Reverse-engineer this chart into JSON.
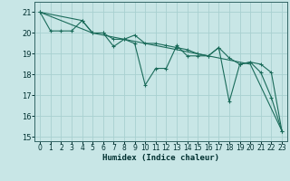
{
  "xlabel": "Humidex (Indice chaleur)",
  "background_color": "#c8e6e6",
  "grid_color": "#a8d0d0",
  "line_color": "#1a6b5a",
  "xlim": [
    -0.5,
    23.5
  ],
  "ylim": [
    14.8,
    21.5
  ],
  "xticks": [
    0,
    1,
    2,
    3,
    4,
    5,
    6,
    7,
    8,
    9,
    10,
    11,
    12,
    13,
    14,
    15,
    16,
    17,
    18,
    19,
    20,
    21,
    22,
    23
  ],
  "yticks": [
    15,
    16,
    17,
    18,
    19,
    20,
    21
  ],
  "series1": [
    [
      0,
      21.0
    ],
    [
      1,
      20.1
    ],
    [
      2,
      20.1
    ],
    [
      3,
      20.1
    ],
    [
      4,
      20.6
    ],
    [
      5,
      20.0
    ],
    [
      6,
      20.0
    ],
    [
      7,
      19.35
    ],
    [
      8,
      19.7
    ],
    [
      9,
      19.5
    ],
    [
      10,
      17.5
    ],
    [
      11,
      18.3
    ],
    [
      12,
      18.3
    ],
    [
      13,
      19.4
    ],
    [
      14,
      18.9
    ],
    [
      15,
      18.9
    ],
    [
      16,
      18.9
    ],
    [
      17,
      19.3
    ],
    [
      18,
      16.7
    ],
    [
      19,
      18.5
    ],
    [
      20,
      18.6
    ],
    [
      21,
      18.1
    ],
    [
      22,
      16.9
    ],
    [
      23,
      15.3
    ]
  ],
  "series2": [
    [
      0,
      21.0
    ],
    [
      4,
      20.6
    ],
    [
      5,
      20.0
    ],
    [
      6,
      20.0
    ],
    [
      7,
      19.7
    ],
    [
      8,
      19.7
    ],
    [
      9,
      19.9
    ],
    [
      10,
      19.5
    ],
    [
      11,
      19.5
    ],
    [
      12,
      19.4
    ],
    [
      13,
      19.3
    ],
    [
      14,
      19.2
    ],
    [
      15,
      19.0
    ],
    [
      16,
      18.9
    ],
    [
      17,
      19.3
    ],
    [
      18,
      18.8
    ],
    [
      19,
      18.5
    ],
    [
      20,
      18.6
    ],
    [
      21,
      18.5
    ],
    [
      22,
      18.1
    ],
    [
      23,
      15.3
    ]
  ],
  "series3": [
    [
      0,
      21.0
    ],
    [
      5,
      20.0
    ],
    [
      10,
      19.5
    ],
    [
      15,
      19.0
    ],
    [
      17,
      18.8
    ],
    [
      20,
      18.5
    ],
    [
      23,
      15.3
    ]
  ]
}
